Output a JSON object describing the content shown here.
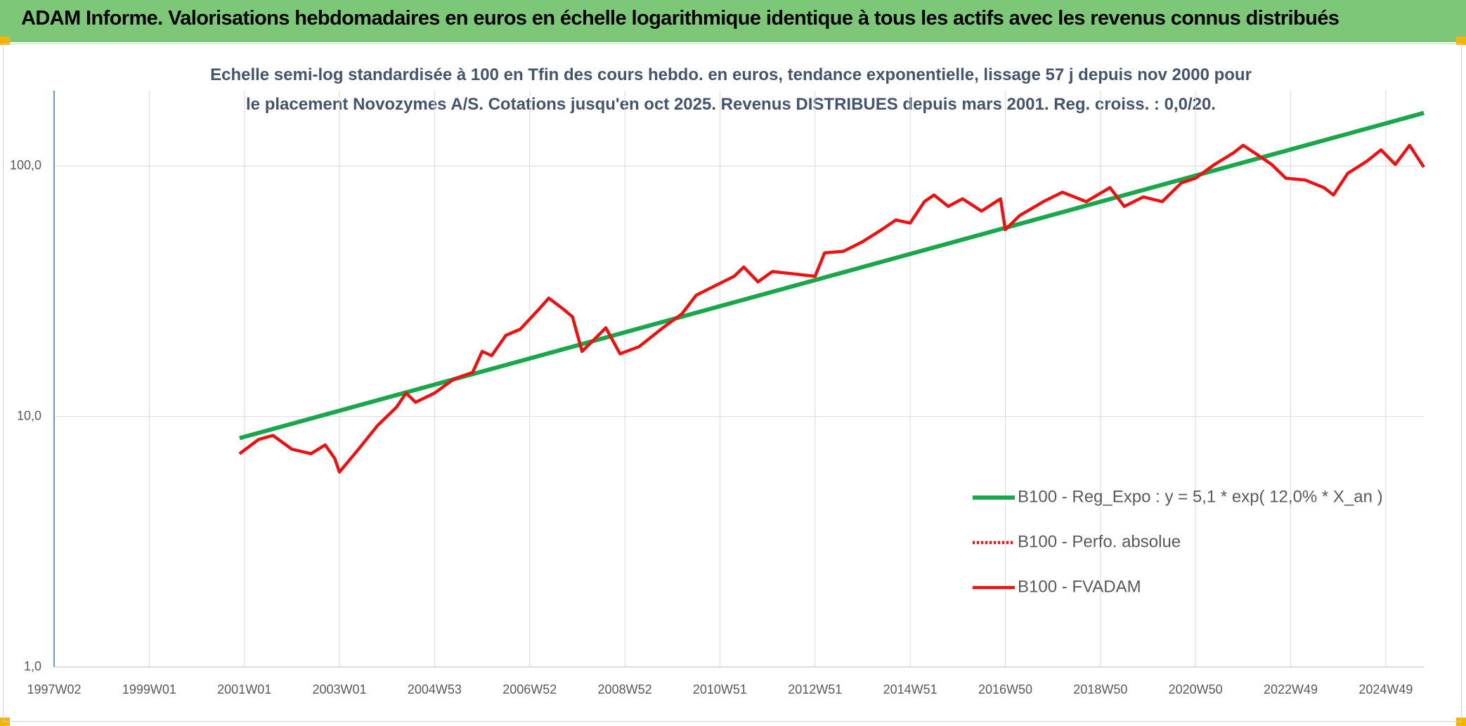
{
  "chart_data": {
    "type": "line",
    "title": "ADAM Informe. Valorisations hebdomadaires en euros en échelle logarithmique identique à tous les actifs avec les revenus connus distribués",
    "subtitle": "Echelle semi-log standardisée à 100 en Tfin des cours hebdo. en euros, tendance exponentielle, lissage 57 j depuis nov 2000 pour le placement Novozymes A/S. Cotations jusqu'en oct 2025. Revenus DISTRIBUES depuis mars 2001. Reg. croiss. : 0,0/20.",
    "log_scale": true,
    "grid": true,
    "xlim": [
      1997.0,
      2025.8
    ],
    "xticks": [
      {
        "value": 1997.0,
        "label": "1997W02"
      },
      {
        "value": 1999.0,
        "label": "1999W01"
      },
      {
        "value": 2001.0,
        "label": "2001W01"
      },
      {
        "value": 2003.0,
        "label": "2003W01"
      },
      {
        "value": 2005.0,
        "label": "2004W53"
      },
      {
        "value": 2007.0,
        "label": "2006W52"
      },
      {
        "value": 2009.0,
        "label": "2008W52"
      },
      {
        "value": 2011.0,
        "label": "2010W51"
      },
      {
        "value": 2013.0,
        "label": "2012W51"
      },
      {
        "value": 2015.0,
        "label": "2014W51"
      },
      {
        "value": 2017.0,
        "label": "2016W50"
      },
      {
        "value": 2019.0,
        "label": "2018W50"
      },
      {
        "value": 2021.0,
        "label": "2020W50"
      },
      {
        "value": 2023.0,
        "label": "2022W49"
      },
      {
        "value": 2025.0,
        "label": "2024W49"
      }
    ],
    "ylim": [
      1,
      200
    ],
    "yticks": [
      {
        "value": 1,
        "label": "1,0"
      },
      {
        "value": 10,
        "label": "10,0"
      },
      {
        "value": 100,
        "label": "100,0"
      }
    ],
    "series": [
      {
        "name": "B100 - Reg_Expo : y = 5,1 * exp( 12,0% *  X_an )",
        "color": "#1aa64a",
        "style": "solid",
        "x": [
          2000.9,
          2025.8
        ],
        "values": [
          8.2,
          163
        ]
      },
      {
        "name": "B100 - Perfo. absolue",
        "color": "#ee1111",
        "style": "dotted",
        "x": [
          2000.9,
          2001.3,
          2001.6,
          2002.0,
          2002.4,
          2002.7,
          2002.9,
          2003.0,
          2003.4,
          2003.8,
          2004.2,
          2004.4,
          2004.6,
          2005.0,
          2005.4,
          2005.8,
          2006.0,
          2006.2,
          2006.5,
          2006.8,
          2007.2,
          2007.4,
          2007.7,
          2007.9,
          2008.1,
          2008.4,
          2008.6,
          2008.9,
          2009.3,
          2009.8,
          2010.2,
          2010.5,
          2010.9,
          2011.3,
          2011.5,
          2011.8,
          2012.1,
          2012.5,
          2013.0,
          2013.2,
          2013.6,
          2014.0,
          2014.4,
          2014.7,
          2015.0,
          2015.3,
          2015.5,
          2015.8,
          2016.1,
          2016.5,
          2016.9,
          2017.0,
          2017.3,
          2017.8,
          2018.2,
          2018.7,
          2019.2,
          2019.5,
          2019.9,
          2020.3,
          2020.7,
          2021.0,
          2021.4,
          2021.8,
          2022.0,
          2022.3,
          2022.6,
          2022.9,
          2023.3,
          2023.7,
          2023.9,
          2024.2,
          2024.6,
          2024.9,
          2025.2,
          2025.5,
          2025.8
        ],
        "values": [
          7.1,
          8.1,
          8.4,
          7.4,
          7.1,
          7.7,
          6.8,
          6.0,
          7.4,
          9.2,
          10.9,
          12.4,
          11.4,
          12.4,
          14.1,
          15.0,
          18.2,
          17.5,
          21.1,
          22.3,
          26.9,
          29.7,
          26.9,
          25.0,
          18.2,
          20.7,
          22.6,
          17.8,
          19.0,
          22.6,
          25.7,
          30.5,
          33.3,
          36.3,
          39.5,
          34.5,
          37.9,
          37.2,
          36.3,
          45.0,
          45.7,
          49.9,
          55.7,
          60.9,
          59.2,
          72.1,
          76.6,
          69.0,
          74.0,
          66.1,
          74.0,
          55.7,
          63.4,
          72.1,
          78.6,
          72.1,
          82.0,
          69.0,
          75.3,
          72.1,
          85.6,
          89.4,
          101.5,
          113,
          121,
          111,
          101.5,
          89.4,
          88,
          82,
          76.6,
          93.5,
          104.5,
          116,
          101.5,
          121,
          99.0
        ]
      },
      {
        "name": "B100 - FVADAM",
        "color": "#ee1111",
        "style": "solid",
        "x": [
          2000.9,
          2001.3,
          2001.6,
          2002.0,
          2002.4,
          2002.7,
          2002.9,
          2003.0,
          2003.4,
          2003.8,
          2004.2,
          2004.4,
          2004.6,
          2005.0,
          2005.4,
          2005.8,
          2006.0,
          2006.2,
          2006.5,
          2006.8,
          2007.2,
          2007.4,
          2007.7,
          2007.9,
          2008.1,
          2008.4,
          2008.6,
          2008.9,
          2009.3,
          2009.8,
          2010.2,
          2010.5,
          2010.9,
          2011.3,
          2011.5,
          2011.8,
          2012.1,
          2012.5,
          2013.0,
          2013.2,
          2013.6,
          2014.0,
          2014.4,
          2014.7,
          2015.0,
          2015.3,
          2015.5,
          2015.8,
          2016.1,
          2016.5,
          2016.9,
          2017.0,
          2017.3,
          2017.8,
          2018.2,
          2018.7,
          2019.2,
          2019.5,
          2019.9,
          2020.3,
          2020.7,
          2021.0,
          2021.4,
          2021.8,
          2022.0,
          2022.3,
          2022.6,
          2022.9,
          2023.3,
          2023.7,
          2023.9,
          2024.2,
          2024.6,
          2024.9,
          2025.2,
          2025.5,
          2025.8
        ],
        "values": [
          7.1,
          8.1,
          8.4,
          7.4,
          7.1,
          7.7,
          6.8,
          6.0,
          7.4,
          9.2,
          10.9,
          12.4,
          11.4,
          12.4,
          14.1,
          15.0,
          18.2,
          17.5,
          21.1,
          22.3,
          26.9,
          29.7,
          26.9,
          25.0,
          18.2,
          20.7,
          22.6,
          17.8,
          19.0,
          22.6,
          25.7,
          30.5,
          33.3,
          36.3,
          39.5,
          34.5,
          37.9,
          37.2,
          36.3,
          45.0,
          45.7,
          49.9,
          55.7,
          60.9,
          59.2,
          72.1,
          76.6,
          69.0,
          74.0,
          66.1,
          74.0,
          55.7,
          63.4,
          72.1,
          78.6,
          72.1,
          82.0,
          69.0,
          75.3,
          72.1,
          85.6,
          89.4,
          101.5,
          113,
          121,
          111,
          101.5,
          89.4,
          88,
          82,
          76.6,
          93.5,
          104.5,
          116,
          101.5,
          121,
          99.0
        ]
      }
    ]
  }
}
